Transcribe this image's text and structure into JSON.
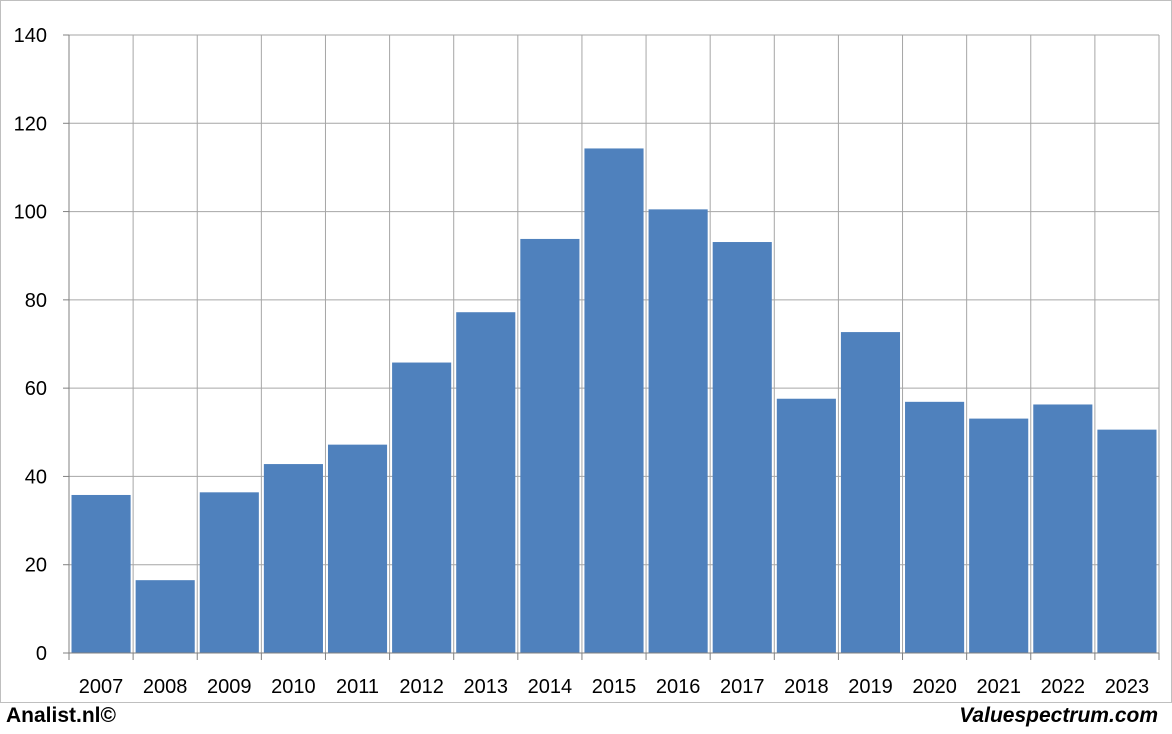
{
  "chart_data": {
    "type": "bar",
    "categories": [
      "2007",
      "2008",
      "2009",
      "2010",
      "2011",
      "2012",
      "2013",
      "2014",
      "2015",
      "2016",
      "2017",
      "2018",
      "2019",
      "2020",
      "2021",
      "2022",
      "2023"
    ],
    "values": [
      35.8,
      16.5,
      36.4,
      42.8,
      47.2,
      65.8,
      77.2,
      93.8,
      114.3,
      100.5,
      93.1,
      57.6,
      72.7,
      56.9,
      53.1,
      56.3,
      50.6
    ],
    "ylim": [
      0,
      140
    ],
    "yticks": [
      "0",
      "20",
      "40",
      "60",
      "80",
      "100",
      "120",
      "140"
    ],
    "grid": true,
    "bar_color": "#4f81bd",
    "grid_color": "#a6a6a6"
  },
  "footer": {
    "left": "Analist.nl©",
    "right": "Valuespectrum.com"
  }
}
